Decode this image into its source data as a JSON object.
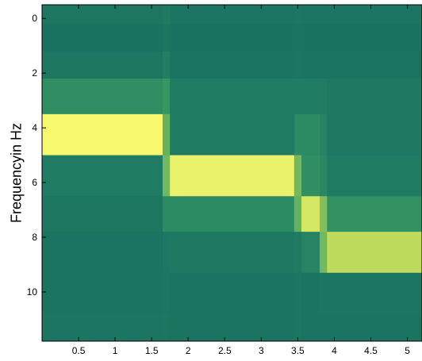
{
  "chart_data": {
    "type": "heatmap",
    "title": "",
    "xlabel": "",
    "ylabel": "Frequencyin Hz",
    "xlim": [
      0,
      5.2
    ],
    "ylim": [
      -0.5,
      11.8
    ],
    "y_reversed": true,
    "xticks": [
      0.5,
      1,
      1.5,
      2,
      2.5,
      3,
      3.5,
      4,
      4.5,
      5
    ],
    "xtick_labels": [
      "0.5",
      "1",
      "1.5",
      "2",
      "2.5",
      "3",
      "3.5",
      "4",
      "4.5",
      "5"
    ],
    "yticks": [
      0,
      2,
      4,
      6,
      8,
      10
    ],
    "ytick_labels": [
      "0",
      "2",
      "4",
      "6",
      "8",
      "10"
    ],
    "colormap": [
      "#1a6e5e",
      "#207b63",
      "#3a9a62",
      "#72b85e",
      "#b0d45a",
      "#f8f86e"
    ],
    "value_range": [
      0,
      1
    ],
    "frequency_bands": [
      {
        "from": -0.5,
        "to": 0.2,
        "base": 0.1
      },
      {
        "from": 0.2,
        "to": 1.2,
        "base": 0.08
      },
      {
        "from": 1.2,
        "to": 2.2,
        "base": 0.1
      },
      {
        "from": 2.2,
        "to": 3.5,
        "base": 0.1
      },
      {
        "from": 3.5,
        "to": 5.0,
        "base": 0.08
      },
      {
        "from": 5.0,
        "to": 6.5,
        "base": 0.12
      },
      {
        "from": 6.5,
        "to": 7.8,
        "base": 0.1
      },
      {
        "from": 7.8,
        "to": 9.3,
        "base": 0.08
      },
      {
        "from": 9.3,
        "to": 10.8,
        "base": 0.08
      },
      {
        "from": 10.8,
        "to": 11.8,
        "base": 0.1
      }
    ],
    "segments": [
      {
        "t_from": 0.0,
        "t_to": 1.65,
        "band_values": [
          0.12,
          0.06,
          0.12,
          0.32,
          1.0,
          0.2,
          0.12,
          0.08,
          0.08,
          0.1
        ]
      },
      {
        "t_from": 1.65,
        "t_to": 1.75,
        "band_values": [
          0.18,
          0.1,
          0.22,
          0.38,
          0.55,
          0.6,
          0.3,
          0.14,
          0.1,
          0.12
        ]
      },
      {
        "t_from": 1.75,
        "t_to": 3.45,
        "band_values": [
          0.1,
          0.06,
          0.08,
          0.2,
          0.2,
          0.96,
          0.3,
          0.16,
          0.08,
          0.08
        ]
      },
      {
        "t_from": 3.45,
        "t_to": 3.55,
        "band_values": [
          0.12,
          0.08,
          0.1,
          0.2,
          0.3,
          0.6,
          0.55,
          0.2,
          0.12,
          0.12
        ]
      },
      {
        "t_from": 3.55,
        "t_to": 3.8,
        "band_values": [
          0.1,
          0.06,
          0.08,
          0.2,
          0.3,
          0.32,
          0.9,
          0.25,
          0.08,
          0.08
        ]
      },
      {
        "t_from": 3.8,
        "t_to": 3.9,
        "band_values": [
          0.1,
          0.06,
          0.08,
          0.2,
          0.25,
          0.28,
          0.65,
          0.6,
          0.1,
          0.08
        ]
      },
      {
        "t_from": 3.9,
        "t_to": 5.2,
        "band_values": [
          0.1,
          0.06,
          0.08,
          0.15,
          0.15,
          0.2,
          0.35,
          0.84,
          0.1,
          0.08
        ]
      }
    ]
  }
}
